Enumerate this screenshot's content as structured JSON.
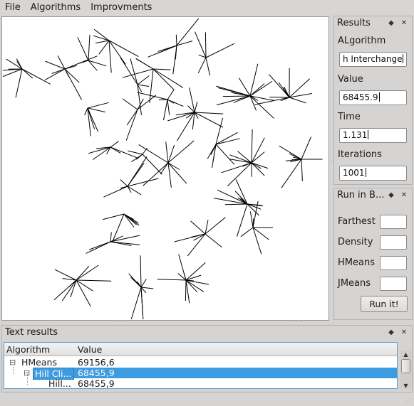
{
  "menubar": {
    "items": [
      "File",
      "Algorithms",
      "Improvments"
    ]
  },
  "results_dock": {
    "title": "Results",
    "algorithm_label": "ALgorithm",
    "algorithm_value": "h Interchange",
    "value_label": "Value",
    "value_value": "68455.9",
    "time_label": "Time",
    "time_value": "1.131",
    "iterations_label": "Iterations",
    "iterations_value": "1001"
  },
  "run_dock": {
    "title": "Run in B...",
    "farthest_label": "Farthest",
    "density_label": "Density",
    "hmeans_label": "HMeans",
    "jmeans_label": "JMeans",
    "run_button": "Run it!"
  },
  "text_results_dock": {
    "title": "Text results",
    "columns": [
      "Algorithm",
      "Value"
    ],
    "rows": [
      {
        "name": "HMeans",
        "value": "69156,6"
      },
      {
        "name": "Hill Cli...",
        "value": "68455,9"
      },
      {
        "name": "Hill...",
        "value": "68455,9"
      }
    ]
  },
  "icons": {
    "float": "float-icon",
    "close": "close-icon"
  }
}
